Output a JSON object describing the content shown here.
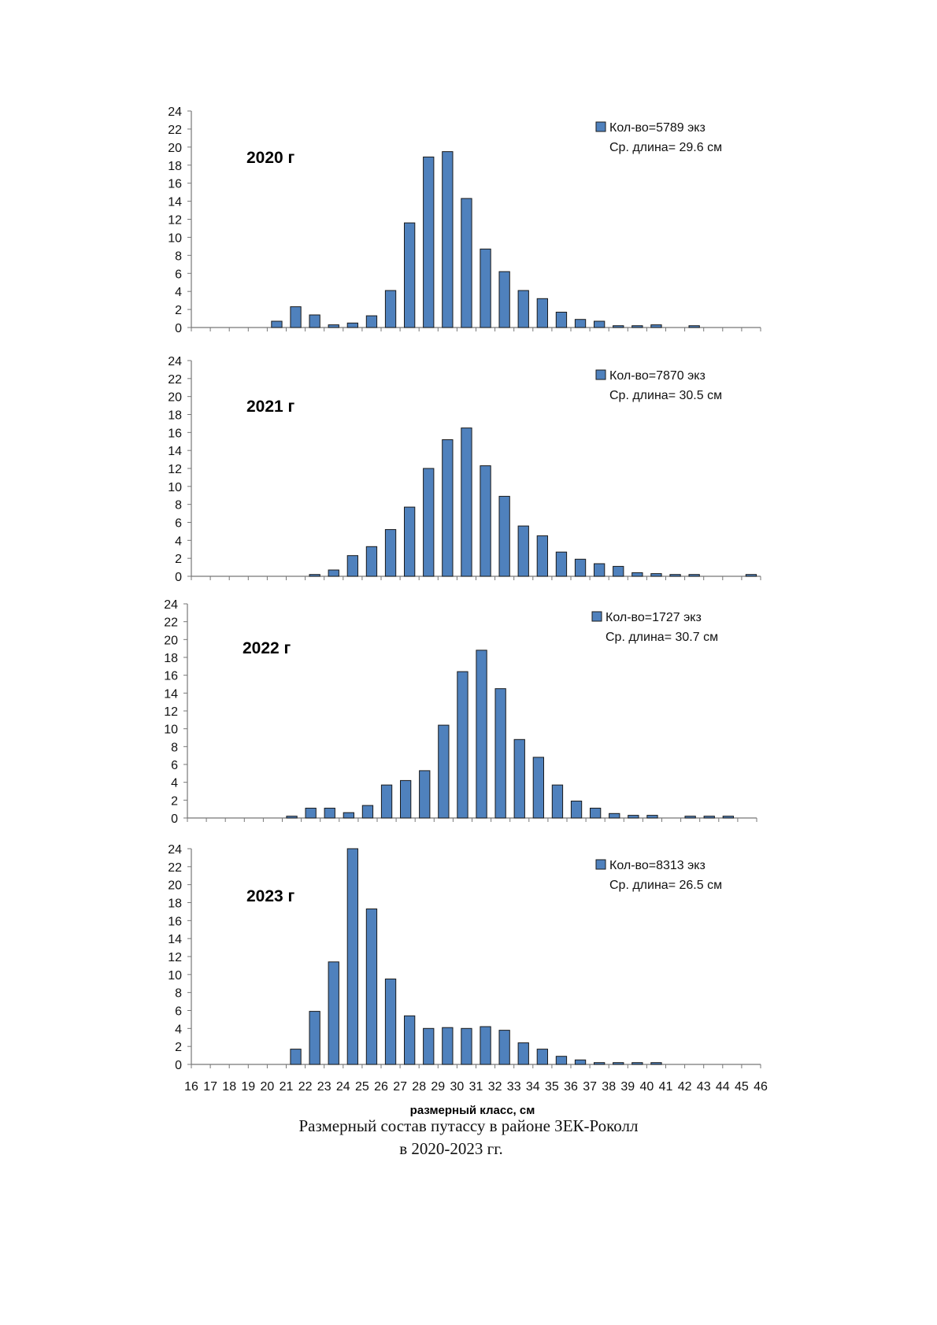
{
  "colors": {
    "bar_fill": "#4f81bd",
    "bar_stroke": "#1a1a1a",
    "axis": "#777777"
  },
  "x_axis": {
    "label": "размерный класс,  см",
    "ticks": [
      16,
      17,
      18,
      19,
      20,
      21,
      22,
      23,
      24,
      25,
      26,
      27,
      28,
      29,
      30,
      31,
      32,
      33,
      34,
      35,
      36,
      37,
      38,
      39,
      40,
      41,
      42,
      43,
      44,
      45,
      46
    ]
  },
  "y_axis": {
    "ticks": [
      0,
      2,
      4,
      6,
      8,
      10,
      12,
      14,
      16,
      18,
      20,
      22,
      24
    ]
  },
  "caption": {
    "line1": "Размерный состав путассу в районе ЗЕК-Роколл",
    "line2": "в 2020-2023 гг."
  },
  "chart_data": [
    {
      "type": "bar",
      "title": "2020 г",
      "legend": {
        "count": "Кол-во=5789 экз",
        "mean": "Ср. длина= 29.6 см"
      },
      "ylim": [
        0,
        24
      ],
      "categories": [
        16,
        17,
        18,
        19,
        20,
        21,
        22,
        23,
        24,
        25,
        26,
        27,
        28,
        29,
        30,
        31,
        32,
        33,
        34,
        35,
        36,
        37,
        38,
        39,
        40,
        41,
        42,
        43,
        44,
        45
      ],
      "values": [
        0,
        0,
        0,
        0,
        0.7,
        2.3,
        1.4,
        0.3,
        0.5,
        1.3,
        4.1,
        11.6,
        18.9,
        19.5,
        14.3,
        8.7,
        6.2,
        4.1,
        3.2,
        1.7,
        0.9,
        0.7,
        0.2,
        0.2,
        0.3,
        0,
        0.2,
        0,
        0,
        0
      ]
    },
    {
      "type": "bar",
      "title": "2021 г",
      "legend": {
        "count": "Кол-во=7870 экз",
        "mean": "Ср. длина= 30.5 см"
      },
      "ylim": [
        0,
        24
      ],
      "categories": [
        16,
        17,
        18,
        19,
        20,
        21,
        22,
        23,
        24,
        25,
        26,
        27,
        28,
        29,
        30,
        31,
        32,
        33,
        34,
        35,
        36,
        37,
        38,
        39,
        40,
        41,
        42,
        43,
        44,
        45
      ],
      "values": [
        0,
        0,
        0,
        0,
        0,
        0,
        0.2,
        0.7,
        2.3,
        3.3,
        5.2,
        7.7,
        12.0,
        15.2,
        16.5,
        12.3,
        8.9,
        5.6,
        4.5,
        2.7,
        1.9,
        1.4,
        1.1,
        0.4,
        0.3,
        0.2,
        0.2,
        0,
        0,
        0.2
      ]
    },
    {
      "type": "bar",
      "title": "2022 г",
      "legend": {
        "count": "Кол-во=1727 экз",
        "mean": "Ср. длина= 30.7 см"
      },
      "ylim": [
        0,
        24
      ],
      "categories": [
        16,
        17,
        18,
        19,
        20,
        21,
        22,
        23,
        24,
        25,
        26,
        27,
        28,
        29,
        30,
        31,
        32,
        33,
        34,
        35,
        36,
        37,
        38,
        39,
        40,
        41,
        42,
        43,
        44,
        45
      ],
      "values": [
        0,
        0,
        0,
        0,
        0,
        0.2,
        1.1,
        1.1,
        0.6,
        1.4,
        3.7,
        4.2,
        5.3,
        10.4,
        16.4,
        18.8,
        14.5,
        8.8,
        6.8,
        3.7,
        1.9,
        1.1,
        0.5,
        0.3,
        0.3,
        0,
        0.2,
        0.2,
        0.2,
        0
      ]
    },
    {
      "type": "bar",
      "title": "2023 г",
      "legend": {
        "count": "Кол-во=8313 экз",
        "mean": "Ср. длина= 26.5 см"
      },
      "ylim": [
        0,
        24
      ],
      "categories": [
        16,
        17,
        18,
        19,
        20,
        21,
        22,
        23,
        24,
        25,
        26,
        27,
        28,
        29,
        30,
        31,
        32,
        33,
        34,
        35,
        36,
        37,
        38,
        39,
        40,
        41,
        42,
        43,
        44,
        45
      ],
      "values": [
        0,
        0,
        0,
        0,
        0,
        1.7,
        5.9,
        11.4,
        24.1,
        17.3,
        9.5,
        5.4,
        4.0,
        4.1,
        4.0,
        4.2,
        3.8,
        2.4,
        1.7,
        0.9,
        0.5,
        0.2,
        0.2,
        0.2,
        0.2,
        0,
        0,
        0,
        0,
        0
      ]
    }
  ]
}
